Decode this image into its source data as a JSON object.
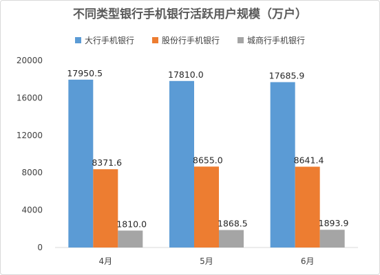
{
  "chart_data": {
    "type": "bar",
    "title": "不同类型银行手机银行活跃用户规模（万户）",
    "categories": [
      "4月",
      "5月",
      "6月"
    ],
    "series": [
      {
        "name": "大行手机银行",
        "color": "#5b9bd5",
        "values": [
          17950.5,
          17810.0,
          17685.9
        ],
        "labels": [
          "17950.5",
          "17810.0",
          "17685.9"
        ]
      },
      {
        "name": "股份行手机银行",
        "color": "#ed7d31",
        "values": [
          8371.6,
          8655.0,
          8641.4
        ],
        "labels": [
          "8371.6",
          "8655.0",
          "8641.4"
        ]
      },
      {
        "name": "城商行手机银行",
        "color": "#a5a5a5",
        "values": [
          1810.0,
          1868.5,
          1893.9
        ],
        "labels": [
          "1810.0",
          "1868.5",
          "1893.9"
        ]
      }
    ],
    "ylim": [
      0,
      20000
    ],
    "yticks": [
      "0",
      "4000",
      "8000",
      "12000",
      "16000",
      "20000"
    ],
    "legend_position": "top",
    "grid": false
  }
}
